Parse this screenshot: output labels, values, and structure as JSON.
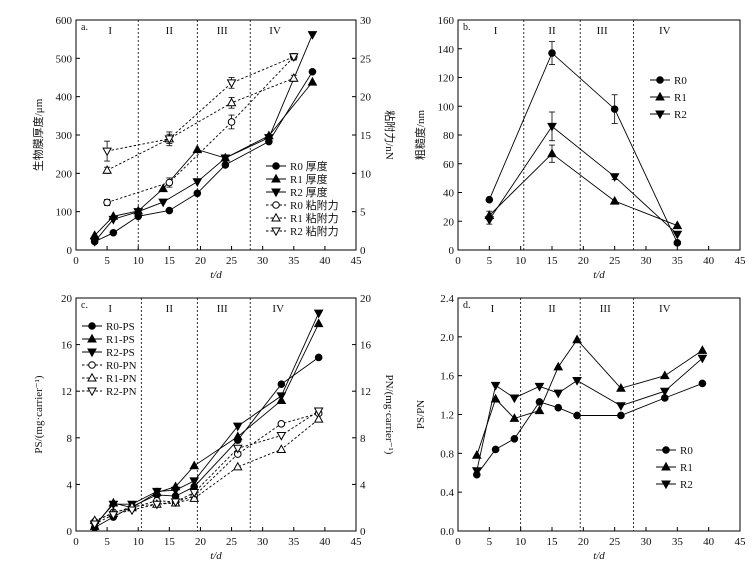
{
  "chart_data": [
    {
      "id": "a",
      "type": "line",
      "panel_label": "a.",
      "xlabel": "t/d",
      "ylabel": "生物膜厚度/μm",
      "y2label": "粘附力/nN",
      "xlim": [
        0,
        45
      ],
      "xticks": [
        0,
        5,
        10,
        15,
        20,
        25,
        30,
        35,
        40,
        45
      ],
      "ylim": [
        0,
        600
      ],
      "yticks": [
        0,
        100,
        200,
        300,
        400,
        500,
        600
      ],
      "y2lim": [
        0,
        30
      ],
      "y2ticks": [
        0,
        5,
        10,
        15,
        20,
        25,
        30
      ],
      "phases": [
        {
          "label": "I",
          "x": 5.5
        },
        {
          "label": "II",
          "x": 15
        },
        {
          "label": "III",
          "x": 23.5
        },
        {
          "label": "IV",
          "x": 32
        }
      ],
      "phase_lines": [
        10,
        19.5,
        28
      ],
      "legend_position": "right-middle",
      "series": [
        {
          "name": "R0 厚度",
          "marker": "circle-filled",
          "axis": "left",
          "dashed": false,
          "x": [
            3,
            6,
            10,
            15,
            19.5,
            24,
            31,
            38
          ],
          "y": [
            22,
            45,
            88,
            103,
            148,
            222,
            283,
            465
          ]
        },
        {
          "name": "R1 厚度",
          "marker": "tri-up-filled",
          "axis": "left",
          "dashed": false,
          "x": [
            3,
            6,
            10,
            14,
            19.5,
            24,
            31,
            38
          ],
          "y": [
            38,
            88,
            102,
            160,
            262,
            240,
            298,
            438
          ]
        },
        {
          "name": "R2 厚度",
          "marker": "tri-down-filled",
          "axis": "left",
          "dashed": false,
          "x": [
            3,
            6,
            10,
            14,
            19.5,
            24,
            31,
            38
          ],
          "y": [
            22,
            80,
            100,
            125,
            178,
            240,
            293,
            562
          ]
        },
        {
          "name": "R0 粘附力",
          "marker": "circle-open",
          "axis": "right",
          "dashed": true,
          "x": [
            5,
            15,
            25,
            35
          ],
          "y": [
            6.2,
            8.8,
            16.7,
            25.2
          ],
          "err": [
            0.4,
            0.6,
            0.9,
            0.4
          ]
        },
        {
          "name": "R1 粘附力",
          "marker": "tri-up-open",
          "axis": "right",
          "dashed": true,
          "x": [
            5,
            15,
            25,
            35
          ],
          "y": [
            10.4,
            14.5,
            19.2,
            22.4
          ],
          "err": [
            0.4,
            0.6,
            0.7,
            0.4
          ]
        },
        {
          "name": "R2 粘附力",
          "marker": "tri-down-open",
          "axis": "right",
          "dashed": true,
          "x": [
            5,
            15,
            25,
            35
          ],
          "y": [
            12.9,
            14.5,
            21.8,
            25.2
          ],
          "err": [
            1.3,
            0.9,
            0.7,
            0.4
          ]
        }
      ]
    },
    {
      "id": "b",
      "type": "line",
      "panel_label": "b.",
      "xlabel": "t/d",
      "ylabel": "粗糙度/nm",
      "xlim": [
        0,
        45
      ],
      "xticks": [
        0,
        5,
        10,
        15,
        20,
        25,
        30,
        35,
        40,
        45
      ],
      "ylim": [
        0,
        160
      ],
      "yticks": [
        0,
        20,
        40,
        60,
        80,
        100,
        120,
        140,
        160
      ],
      "phases": [
        {
          "label": "I",
          "x": 6
        },
        {
          "label": "II",
          "x": 15
        },
        {
          "label": "III",
          "x": 23
        },
        {
          "label": "IV",
          "x": 33
        }
      ],
      "phase_lines": [
        10.5,
        19.5,
        28
      ],
      "legend_position": "top-right",
      "series": [
        {
          "name": "R0",
          "marker": "circle-filled",
          "x": [
            5,
            15,
            25,
            35
          ],
          "y": [
            35,
            137,
            98,
            5
          ],
          "err": [
            0,
            8,
            10,
            0
          ]
        },
        {
          "name": "R1",
          "marker": "tri-up-filled",
          "x": [
            5,
            15,
            25,
            35
          ],
          "y": [
            24,
            67,
            34,
            17
          ],
          "err": [
            3,
            6,
            0,
            0
          ]
        },
        {
          "name": "R2",
          "marker": "tri-down-filled",
          "x": [
            5,
            15,
            25,
            35
          ],
          "y": [
            21,
            86,
            51,
            11
          ],
          "err": [
            3,
            10,
            2,
            0
          ]
        }
      ]
    },
    {
      "id": "c",
      "type": "line",
      "panel_label": "c.",
      "xlabel": "t/d",
      "ylabel": "PS/(mg·carrier⁻¹)",
      "y2label": "PN/(mg·carrier⁻¹)",
      "xlim": [
        0,
        45
      ],
      "xticks": [
        0,
        5,
        10,
        15,
        20,
        25,
        30,
        35,
        40,
        45
      ],
      "ylim": [
        0,
        20
      ],
      "yticks": [
        0,
        4,
        8,
        12,
        16,
        20
      ],
      "y2lim": [
        0,
        20
      ],
      "y2ticks": [
        0,
        4,
        8,
        12,
        16,
        20
      ],
      "phases": [
        {
          "label": "I",
          "x": 5.5
        },
        {
          "label": "II",
          "x": 15
        },
        {
          "label": "III",
          "x": 23.5
        },
        {
          "label": "IV",
          "x": 32.5
        }
      ],
      "phase_lines": [
        10.5,
        19.5,
        28
      ],
      "legend_position": "top-left",
      "series": [
        {
          "name": "R0-PS",
          "marker": "circle-filled",
          "axis": "left",
          "dashed": false,
          "x": [
            3,
            6,
            9,
            13,
            16,
            19,
            26,
            33,
            39
          ],
          "y": [
            0.3,
            1.2,
            2.1,
            3.1,
            3.0,
            3.8,
            7.8,
            12.6,
            14.9
          ]
        },
        {
          "name": "R1-PS",
          "marker": "tri-up-filled",
          "axis": "left",
          "dashed": false,
          "x": [
            3,
            6,
            9,
            13,
            16,
            19,
            26,
            33,
            39
          ],
          "y": [
            0.4,
            2.4,
            2.0,
            3.3,
            3.8,
            5.6,
            8.1,
            11.2,
            17.8
          ]
        },
        {
          "name": "R2-PS",
          "marker": "tri-down-filled",
          "axis": "left",
          "dashed": false,
          "x": [
            3,
            6,
            9,
            13,
            16,
            19,
            26,
            33,
            39
          ],
          "y": [
            0.5,
            2.3,
            2.3,
            3.4,
            3.5,
            4.3,
            9.0,
            11.6,
            18.7
          ]
        },
        {
          "name": "R0-PN",
          "marker": "circle-open",
          "axis": "right",
          "dashed": true,
          "x": [
            3,
            6,
            9,
            13,
            16,
            19,
            26,
            33,
            39
          ],
          "y": [
            0.8,
            1.6,
            2.0,
            2.6,
            2.5,
            3.0,
            6.6,
            9.2,
            10.1
          ]
        },
        {
          "name": "R1-PN",
          "marker": "tri-up-open",
          "axis": "right",
          "dashed": true,
          "x": [
            3,
            6,
            9,
            13,
            16,
            19,
            26,
            33,
            39
          ],
          "y": [
            0.9,
            1.5,
            2.1,
            2.3,
            2.4,
            2.8,
            5.5,
            7.0,
            9.6
          ]
        },
        {
          "name": "R2-PN",
          "marker": "tri-down-open",
          "axis": "right",
          "dashed": true,
          "x": [
            3,
            6,
            9,
            13,
            16,
            19,
            26,
            33,
            39
          ],
          "y": [
            0.6,
            1.4,
            1.8,
            2.3,
            2.5,
            3.3,
            7.1,
            8.2,
            10.3
          ]
        }
      ]
    },
    {
      "id": "d",
      "type": "line",
      "panel_label": "d.",
      "xlabel": "t/d",
      "ylabel": "PS/PN",
      "xlim": [
        0,
        45
      ],
      "xticks": [
        0,
        5,
        10,
        15,
        20,
        25,
        30,
        35,
        40,
        45
      ],
      "ylim": [
        0,
        2.4
      ],
      "yticks": [
        0,
        0.4,
        0.8,
        1.2,
        1.6,
        2.0,
        2.4
      ],
      "phases": [
        {
          "label": "I",
          "x": 5.5
        },
        {
          "label": "II",
          "x": 15
        },
        {
          "label": "III",
          "x": 23.5
        },
        {
          "label": "IV",
          "x": 33
        }
      ],
      "phase_lines": [
        10,
        19.5,
        28
      ],
      "legend_position": "bottom-right",
      "series": [
        {
          "name": "R0",
          "marker": "circle-filled",
          "x": [
            3,
            6,
            9,
            13,
            16,
            19,
            26,
            33,
            39
          ],
          "y": [
            0.58,
            0.84,
            0.95,
            1.33,
            1.27,
            1.19,
            1.19,
            1.37,
            1.52
          ]
        },
        {
          "name": "R1",
          "marker": "tri-up-filled",
          "x": [
            3,
            6,
            9,
            13,
            16,
            19,
            26,
            33,
            39
          ],
          "y": [
            0.78,
            1.36,
            1.16,
            1.24,
            1.69,
            1.97,
            1.47,
            1.6,
            1.86
          ]
        },
        {
          "name": "R2",
          "marker": "tri-down-filled",
          "x": [
            3,
            6,
            9,
            13,
            16,
            19,
            26,
            33,
            39
          ],
          "y": [
            0.62,
            1.5,
            1.37,
            1.49,
            1.42,
            1.55,
            1.29,
            1.44,
            1.78
          ]
        }
      ]
    }
  ]
}
